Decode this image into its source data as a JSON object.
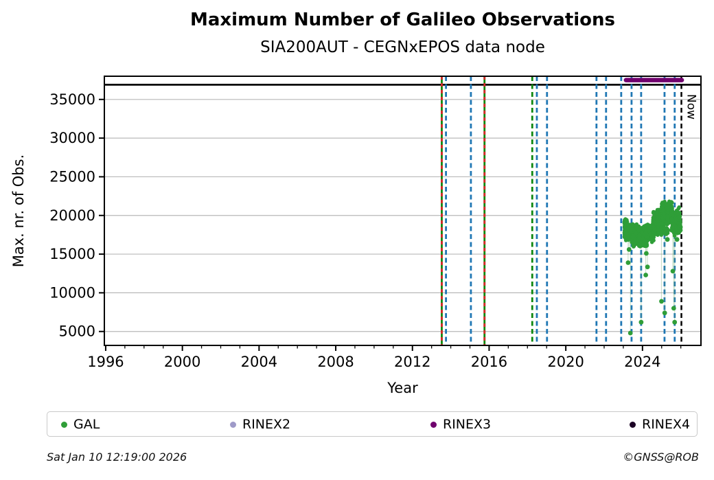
{
  "header": {
    "title": "Maximum Number of Galileo Observations",
    "subtitle": "SIA200AUT - CEGNxEPOS data node"
  },
  "footer": {
    "timestamp": "Sat Jan 10 12:19:00 2026",
    "credit": "©GNSS@ROB"
  },
  "legend": {
    "items": [
      {
        "label": "GAL",
        "color": "#2f9e38"
      },
      {
        "label": "RINEX2",
        "color": "#9e9ac8"
      },
      {
        "label": "RINEX3",
        "color": "#70016e"
      },
      {
        "label": "RINEX4",
        "color": "#1b0125"
      }
    ]
  },
  "chart_data": {
    "type": "scatter",
    "title": "Maximum Number of Galileo Observations",
    "subtitle": "SIA200AUT - CEGNxEPOS data node",
    "xlabel": "Year",
    "ylabel": "Max. nr. of Obs.",
    "xlim": [
      1995.93,
      2027.05
    ],
    "ylim": [
      3200,
      38000
    ],
    "x_major_ticks": [
      1996,
      2000,
      2004,
      2008,
      2012,
      2016,
      2020,
      2024
    ],
    "x_minor_ticks_start": 1996,
    "x_minor_ticks_end": 2026,
    "y_ticks": [
      5000,
      10000,
      15000,
      20000,
      25000,
      30000,
      35000
    ],
    "grid": "horizontal-only",
    "grid_color": "#b8b8b8",
    "reference_line": {
      "value": 36900,
      "color": "#000000",
      "width": 2.8
    },
    "now_marker": {
      "year": 2026.03,
      "label": "Now",
      "color": "#000000",
      "style": "dashed"
    },
    "event_lines": [
      {
        "year": 2013.53,
        "color": "#0e870e",
        "style": "solid"
      },
      {
        "year": 2013.53,
        "color": "#d62728",
        "style": "dashed"
      },
      {
        "year": 2013.75,
        "color": "#1f77b4",
        "style": "dashed"
      },
      {
        "year": 2015.05,
        "color": "#1f77b4",
        "style": "dashed"
      },
      {
        "year": 2015.76,
        "color": "#0e870e",
        "style": "solid"
      },
      {
        "year": 2015.76,
        "color": "#d62728",
        "style": "dashed"
      },
      {
        "year": 2018.25,
        "color": "#0e870e",
        "style": "dashed"
      },
      {
        "year": 2018.49,
        "color": "#1f77b4",
        "style": "dashed"
      },
      {
        "year": 2019.02,
        "color": "#1f77b4",
        "style": "dashed"
      },
      {
        "year": 2021.6,
        "color": "#1f77b4",
        "style": "dashed"
      },
      {
        "year": 2022.1,
        "color": "#1f77b4",
        "style": "dashed"
      },
      {
        "year": 2022.89,
        "color": "#1f77b4",
        "style": "dashed"
      },
      {
        "year": 2023.43,
        "color": "#1f77b4",
        "style": "dashed"
      },
      {
        "year": 2023.93,
        "color": "#1f77b4",
        "style": "dashed"
      },
      {
        "year": 2025.15,
        "color": "#1f77b4",
        "style": "dashed"
      },
      {
        "year": 2025.68,
        "color": "#1f77b4",
        "style": "dashed"
      }
    ],
    "series": [
      {
        "name": "GAL",
        "color": "#2f9e38",
        "marker_radius": 2.8,
        "dense_regions": [
          {
            "x0": 2023.05,
            "x1": 2023.2,
            "y0": 18700,
            "y1": 19600,
            "n": 30
          },
          {
            "x0": 2023.05,
            "x1": 2023.45,
            "y0": 16700,
            "y1": 18900,
            "n": 150
          },
          {
            "x0": 2023.4,
            "x1": 2024.6,
            "y0": 16400,
            "y1": 18950,
            "n": 430
          },
          {
            "x0": 2023.5,
            "x1": 2024.25,
            "y0": 15900,
            "y1": 16600,
            "n": 45
          },
          {
            "x0": 2024.55,
            "x1": 2024.8,
            "y0": 17300,
            "y1": 20700,
            "n": 90
          },
          {
            "x0": 2024.75,
            "x1": 2025.1,
            "y0": 18600,
            "y1": 21000,
            "n": 180
          },
          {
            "x0": 2025.0,
            "x1": 2025.55,
            "y0": 18800,
            "y1": 21850,
            "n": 260
          },
          {
            "x0": 2024.8,
            "x1": 2025.35,
            "y0": 17400,
            "y1": 18600,
            "n": 70
          },
          {
            "x0": 2025.5,
            "x1": 2025.95,
            "y0": 17300,
            "y1": 21100,
            "n": 220
          },
          {
            "x0": 2025.88,
            "x1": 2026.0,
            "y0": 17500,
            "y1": 20200,
            "n": 35
          }
        ],
        "outliers": [
          [
            2023.25,
            13900
          ],
          [
            2023.37,
            4800
          ],
          [
            2023.3,
            15600
          ],
          [
            2023.93,
            6200
          ],
          [
            2024.17,
            12300
          ],
          [
            2024.26,
            13350
          ],
          [
            2024.2,
            15100
          ],
          [
            2024.99,
            8900
          ],
          [
            2025.16,
            7400
          ],
          [
            2025.3,
            16900
          ],
          [
            2025.58,
            12800
          ],
          [
            2025.63,
            8000
          ],
          [
            2025.68,
            6200
          ],
          [
            2025.8,
            16900
          ]
        ]
      },
      {
        "name": "RINEX2",
        "color": "#9e9ac8",
        "segments": []
      },
      {
        "name": "RINEX3",
        "color": "#70016e",
        "line_segment": {
          "x0": 2023.14,
          "x1": 2026.05,
          "value": 37500,
          "width": 6.5
        }
      },
      {
        "name": "RINEX4",
        "color": "#1b0125",
        "segments": []
      }
    ]
  }
}
